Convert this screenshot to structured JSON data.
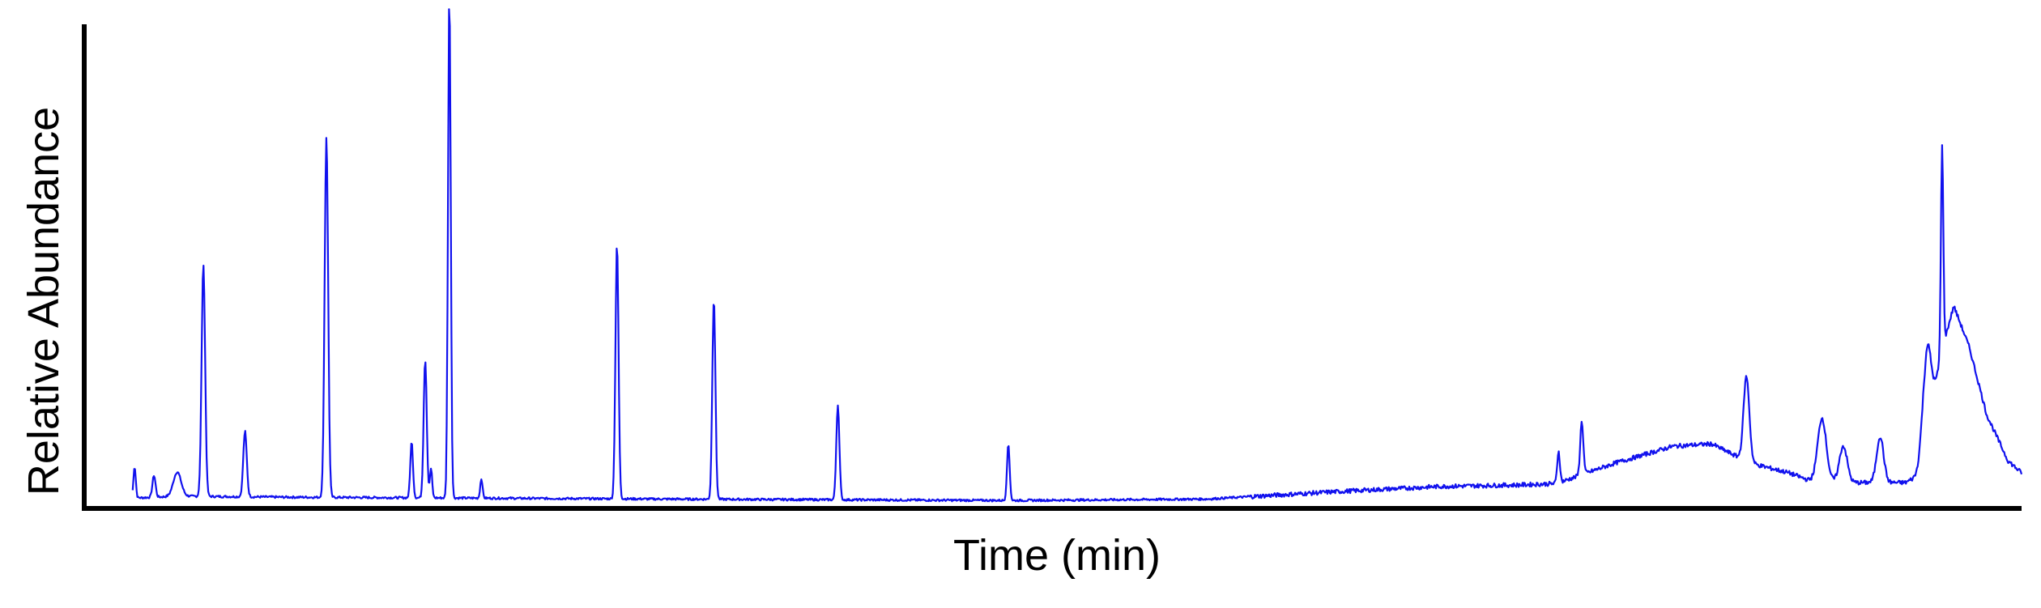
{
  "chart_data": {
    "type": "line",
    "title": "",
    "xlabel": "Time (min)",
    "ylabel": "Relative Abundance",
    "xlim": [
      0,
      100
    ],
    "ylim": [
      0,
      100
    ],
    "grid": false,
    "legend": "none",
    "series": [
      {
        "color": "#1111ee",
        "peaks": [
          {
            "x": 2.6,
            "y": 6.5,
            "w": 0.06
          },
          {
            "x": 3.6,
            "y": 4.5,
            "w": 0.08
          },
          {
            "x": 4.8,
            "y": 5.0,
            "w": 0.2
          },
          {
            "x": 6.15,
            "y": 48.0,
            "w": 0.09
          },
          {
            "x": 8.3,
            "y": 13.5,
            "w": 0.09
          },
          {
            "x": 12.5,
            "y": 74.5,
            "w": 0.09
          },
          {
            "x": 16.9,
            "y": 11.5,
            "w": 0.07
          },
          {
            "x": 17.6,
            "y": 28.5,
            "w": 0.08
          },
          {
            "x": 17.9,
            "y": 6.0,
            "w": 0.06
          },
          {
            "x": 18.8,
            "y": 5.0,
            "w": 0.06
          },
          {
            "x": 18.85,
            "y": 100.0,
            "w": 0.07
          },
          {
            "x": 20.5,
            "y": 4.0,
            "w": 0.06
          },
          {
            "x": 27.5,
            "y": 52.5,
            "w": 0.08
          },
          {
            "x": 32.5,
            "y": 41.5,
            "w": 0.08
          },
          {
            "x": 38.9,
            "y": 19.5,
            "w": 0.08
          },
          {
            "x": 47.7,
            "y": 11.5,
            "w": 0.07
          },
          {
            "x": 76.1,
            "y": 6.5,
            "w": 0.07
          },
          {
            "x": 77.3,
            "y": 11.0,
            "w": 0.08
          },
          {
            "x": 85.8,
            "y": 17.5,
            "w": 0.15
          },
          {
            "x": 89.7,
            "y": 13.0,
            "w": 0.22
          },
          {
            "x": 90.8,
            "y": 7.5,
            "w": 0.2
          },
          {
            "x": 92.7,
            "y": 9.5,
            "w": 0.18
          },
          {
            "x": 95.1,
            "y": 22.5,
            "w": 0.22
          },
          {
            "x": 95.9,
            "y": 42.5,
            "w": 0.06
          }
        ],
        "baseline": [
          [
            0,
            0.5
          ],
          [
            2.5,
            0.8
          ],
          [
            5,
            1.2
          ],
          [
            10,
            1.0
          ],
          [
            30,
            0.6
          ],
          [
            48,
            0.3
          ],
          [
            58,
            0.6
          ],
          [
            65,
            2.2
          ],
          [
            70,
            3.2
          ],
          [
            74,
            3.5
          ],
          [
            76,
            3.8
          ],
          [
            79,
            8.0
          ],
          [
            82,
            11.5
          ],
          [
            84,
            12.0
          ],
          [
            86,
            8.0
          ],
          [
            88,
            6.0
          ],
          [
            89,
            4.5
          ],
          [
            91,
            4.0
          ],
          [
            94,
            4.0
          ],
          [
            95,
            6.0
          ],
          [
            95.8,
            30.0
          ],
          [
            96.5,
            40.5
          ],
          [
            97.3,
            32.0
          ],
          [
            98.2,
            18.0
          ],
          [
            99.3,
            8.5
          ],
          [
            100,
            6.0
          ]
        ]
      }
    ]
  }
}
